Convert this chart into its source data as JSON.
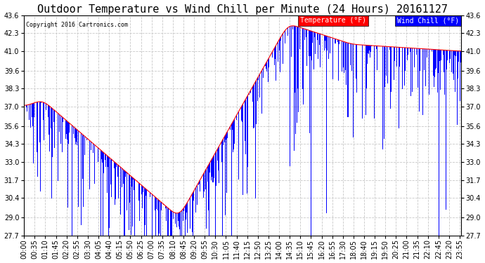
{
  "title": "Outdoor Temperature vs Wind Chill per Minute (24 Hours) 20161127",
  "copyright_text": "Copyright 2016 Cartronics.com",
  "legend_wind_chill": "Wind Chill (°F)",
  "legend_temperature": "Temperature (°F)",
  "ylim": [
    27.7,
    43.6
  ],
  "yticks": [
    27.7,
    29.0,
    30.4,
    31.7,
    33.0,
    34.3,
    35.6,
    37.0,
    38.3,
    39.6,
    41.0,
    42.3,
    43.6
  ],
  "bg_color": "#ffffff",
  "plot_bg_color": "#ffffff",
  "grid_color": "#c8c8c8",
  "bar_color": "#0000ff",
  "line_color": "#ff0000",
  "title_fontsize": 11,
  "tick_fontsize": 7,
  "total_minutes": 1440,
  "tick_interval": 35
}
